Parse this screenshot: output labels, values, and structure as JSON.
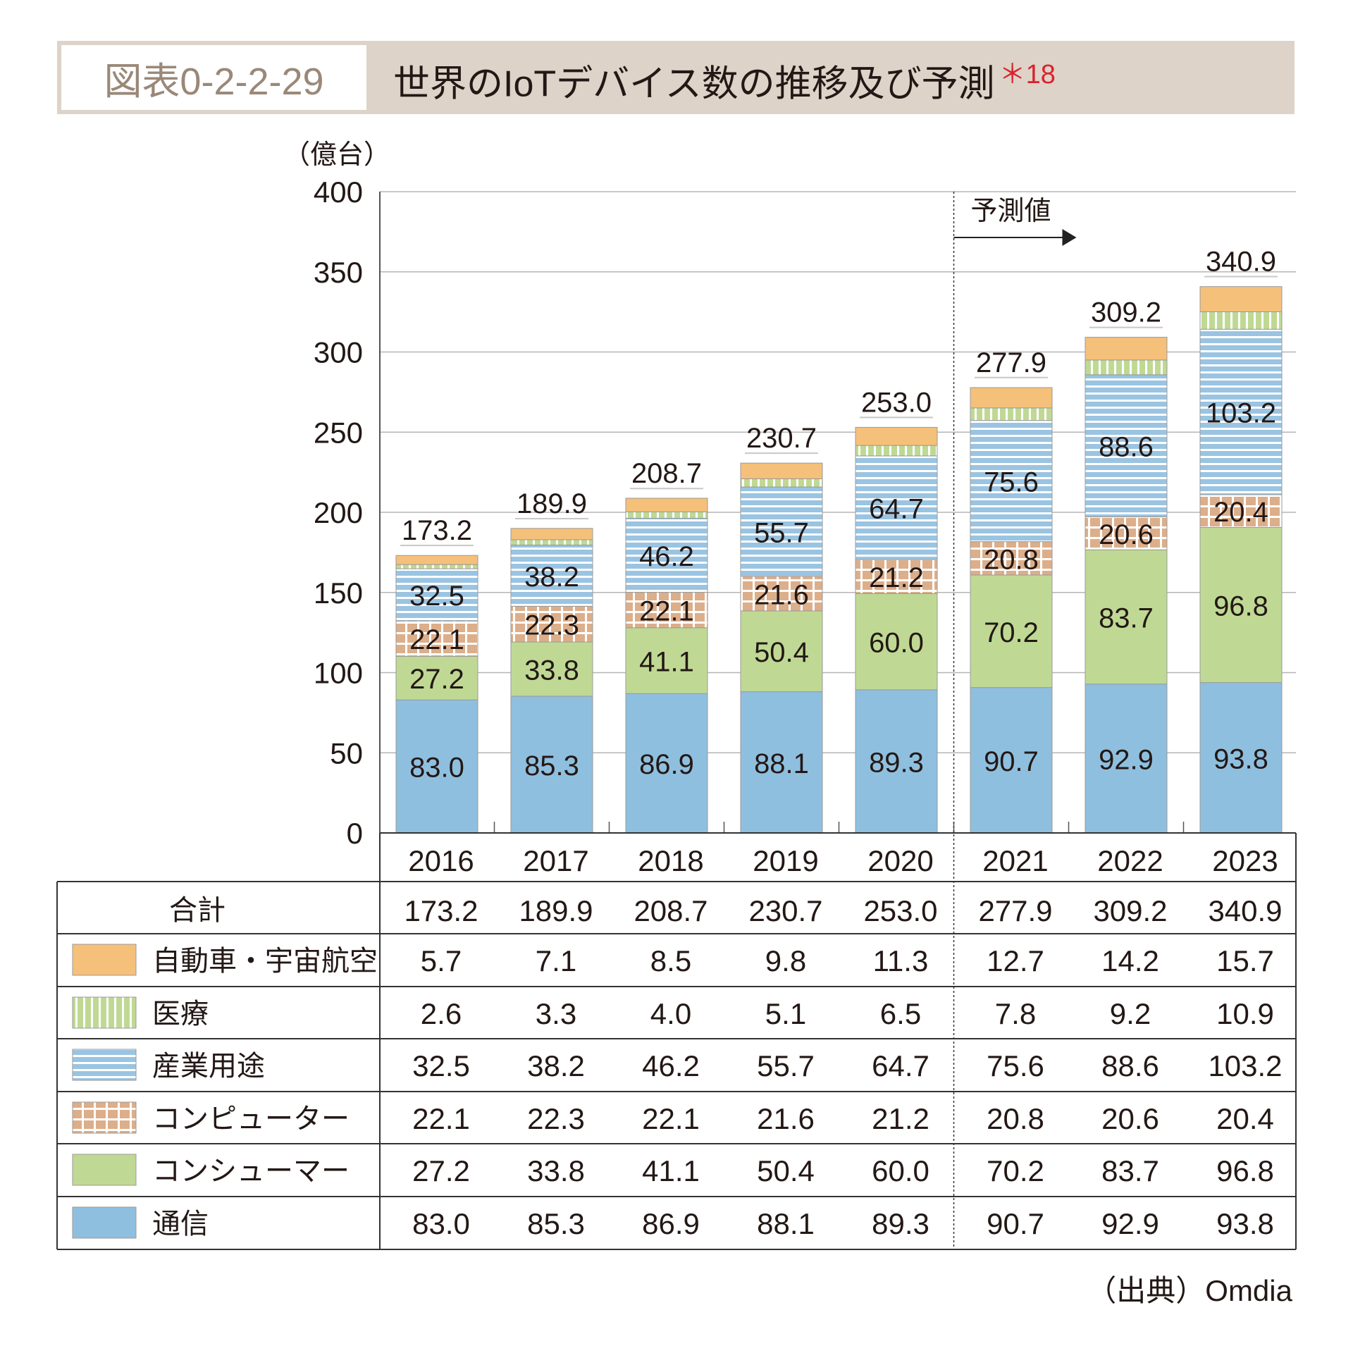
{
  "title": {
    "id": "図表0-2-2-29",
    "text": "世界のIoTデバイス数の推移及び予測",
    "note": "＊18"
  },
  "source": "（出典）Omdia",
  "colors": {
    "automotive": "#f5c07a",
    "medical": "#bfd994",
    "industrial": "#9ac4e2",
    "computer": "#dcae8a",
    "consumer": "#bfd994",
    "comm": "#8fbfdf",
    "title_band": "#ddd3c8"
  },
  "chart_data": {
    "type": "bar",
    "stacked": true,
    "ylabel": "（億台）",
    "ylim": [
      0,
      400
    ],
    "yticks": [
      0,
      50,
      100,
      150,
      200,
      250,
      300,
      350,
      400
    ],
    "grid": true,
    "forecast_label": "予測値",
    "forecast_from": "2021",
    "categories": [
      "2016",
      "2017",
      "2018",
      "2019",
      "2020",
      "2021",
      "2022",
      "2023"
    ],
    "total_label": "合計",
    "totals": [
      173.2,
      189.9,
      208.7,
      230.7,
      253.0,
      277.9,
      309.2,
      340.9
    ],
    "series": [
      {
        "name": "通信",
        "key": "comm",
        "pattern": "solid",
        "values": [
          83.0,
          85.3,
          86.9,
          88.1,
          89.3,
          90.7,
          92.9,
          93.8
        ]
      },
      {
        "name": "コンシューマー",
        "key": "consumer",
        "pattern": "solid",
        "values": [
          27.2,
          33.8,
          41.1,
          50.4,
          60.0,
          70.2,
          83.7,
          96.8
        ]
      },
      {
        "name": "コンピューター",
        "key": "computer",
        "pattern": "grid",
        "values": [
          22.1,
          22.3,
          22.1,
          21.6,
          21.2,
          20.8,
          20.6,
          20.4
        ]
      },
      {
        "name": "産業用途",
        "key": "industrial",
        "pattern": "horizontal-stripes",
        "values": [
          32.5,
          38.2,
          46.2,
          55.7,
          64.7,
          75.6,
          88.6,
          103.2
        ]
      },
      {
        "name": "医療",
        "key": "medical",
        "pattern": "vertical-stripes",
        "values": [
          2.6,
          3.3,
          4.0,
          5.1,
          6.5,
          7.8,
          9.2,
          10.9
        ]
      },
      {
        "name": "自動車・宇宙航空",
        "key": "automotive",
        "pattern": "solid",
        "values": [
          5.7,
          7.1,
          8.5,
          9.8,
          11.3,
          12.7,
          14.2,
          15.7
        ]
      }
    ]
  }
}
